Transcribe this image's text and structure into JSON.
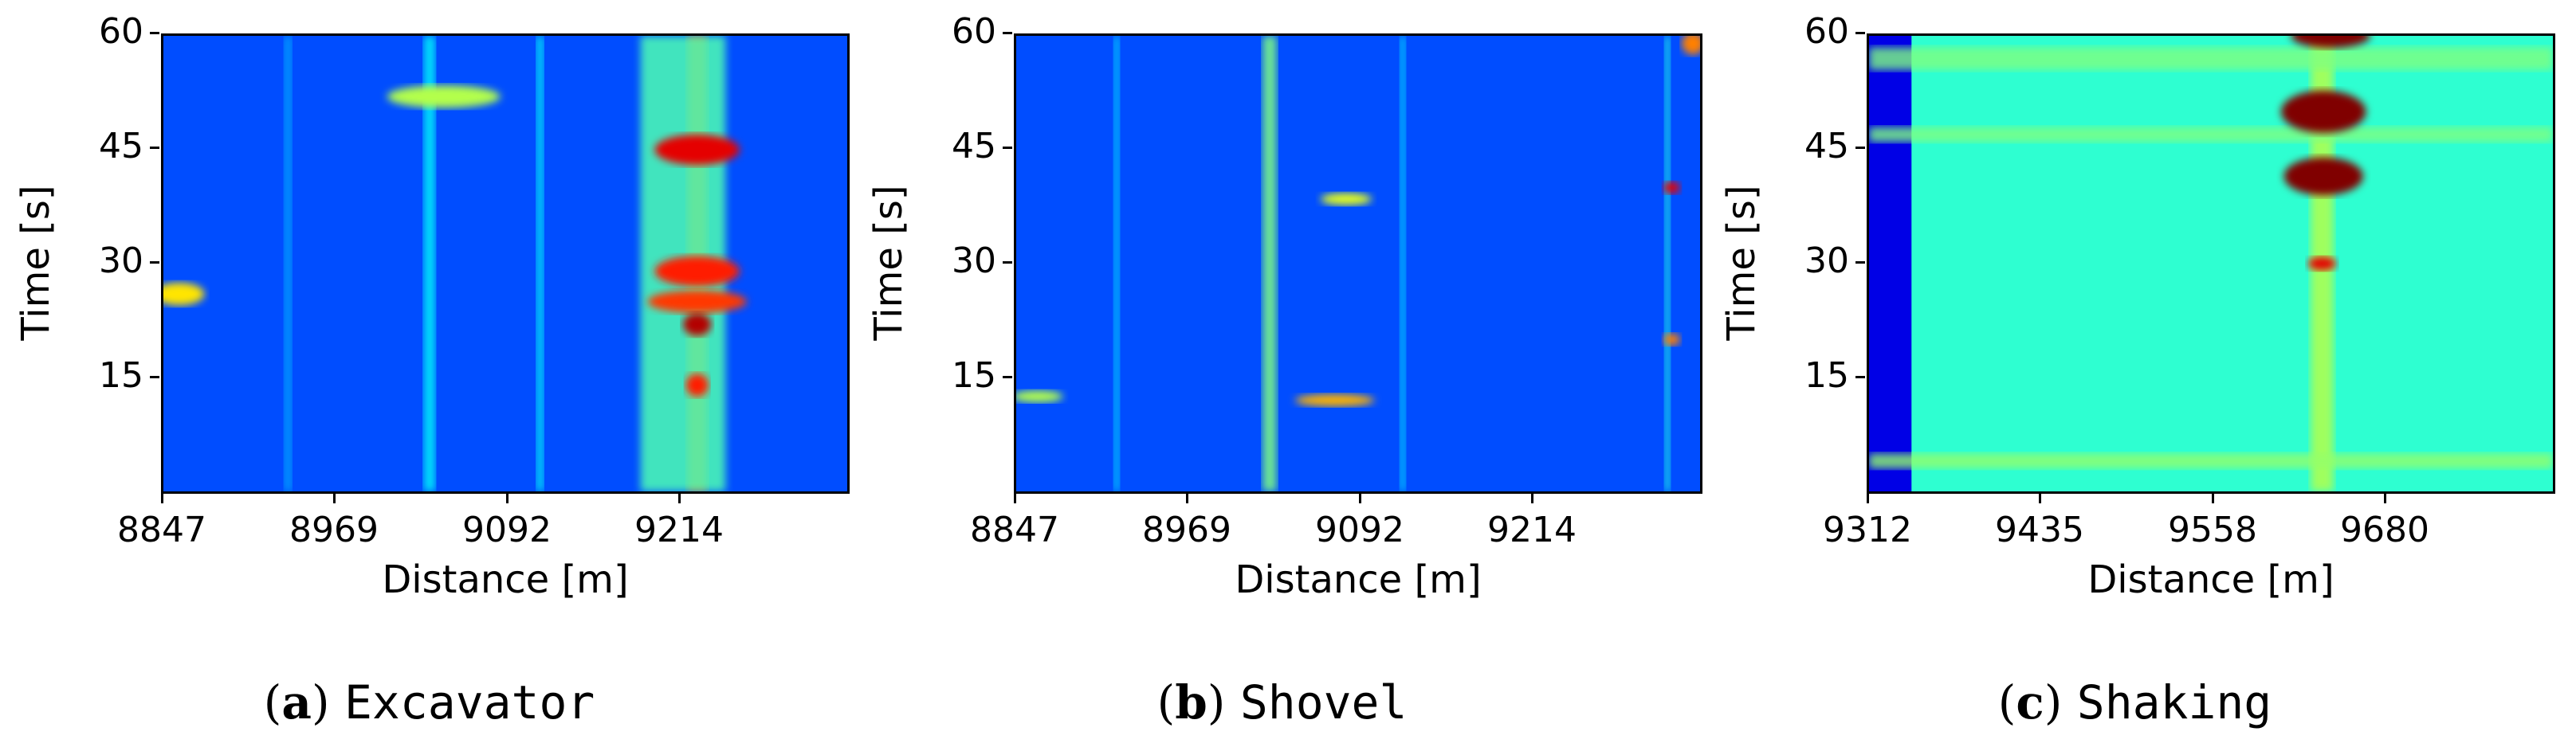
{
  "chart_data": [
    {
      "type": "heatmap",
      "caption_letter": "a",
      "caption_name": "Excavator",
      "xlabel": "Distance [m]",
      "ylabel": "Time [s]",
      "x_ticks": [
        "8847",
        "8969",
        "9092",
        "9214"
      ],
      "y_ticks": [
        "15",
        "30",
        "45",
        "60"
      ],
      "xlim": [
        8847,
        9330
      ],
      "ylim": [
        0,
        60
      ],
      "colormap": "jet",
      "background_level": 0.2,
      "features": [
        {
          "kind": "vline",
          "x": 9224,
          "width": 14,
          "level": 0.78
        },
        {
          "kind": "vline",
          "x": 9214,
          "width": 60,
          "level": 0.45
        },
        {
          "kind": "vline",
          "x": 9035,
          "width": 8,
          "level": 0.38
        },
        {
          "kind": "vline",
          "x": 9113,
          "width": 5,
          "level": 0.38
        },
        {
          "kind": "vline",
          "x": 8935,
          "width": 5,
          "level": 0.3
        },
        {
          "kind": "blob",
          "x": 9224,
          "y": 45,
          "rx": 30,
          "ry": 2,
          "level": 0.9
        },
        {
          "kind": "blob",
          "x": 9224,
          "y": 29,
          "rx": 30,
          "ry": 2,
          "level": 0.85
        },
        {
          "kind": "blob",
          "x": 9224,
          "y": 25,
          "rx": 35,
          "ry": 1.5,
          "level": 0.82
        },
        {
          "kind": "blob",
          "x": 9224,
          "y": 22,
          "rx": 10,
          "ry": 1.5,
          "level": 0.95
        },
        {
          "kind": "blob",
          "x": 9224,
          "y": 14,
          "rx": 8,
          "ry": 1.5,
          "level": 0.85
        },
        {
          "kind": "blob",
          "x": 8858,
          "y": 26,
          "rx": 18,
          "ry": 1.5,
          "level": 0.65
        },
        {
          "kind": "blob",
          "x": 9045,
          "y": 52,
          "rx": 40,
          "ry": 1.5,
          "level": 0.55
        }
      ]
    },
    {
      "type": "heatmap",
      "caption_letter": "b",
      "caption_name": "Shovel",
      "xlabel": "Distance [m]",
      "ylabel": "Time [s]",
      "x_ticks": [
        "8847",
        "8969",
        "9092",
        "9214"
      ],
      "y_ticks": [
        "15",
        "30",
        "45",
        "60"
      ],
      "xlim": [
        8847,
        9330
      ],
      "ylim": [
        0,
        60
      ],
      "colormap": "jet",
      "background_level": 0.2,
      "features": [
        {
          "kind": "vline",
          "x": 9026,
          "width": 10,
          "level": 0.5
        },
        {
          "kind": "vline",
          "x": 8918,
          "width": 4,
          "level": 0.35
        },
        {
          "kind": "vline",
          "x": 9120,
          "width": 4,
          "level": 0.35
        },
        {
          "kind": "vline",
          "x": 9307,
          "width": 4,
          "level": 0.4
        },
        {
          "kind": "blob",
          "x": 9072,
          "y": 12,
          "rx": 28,
          "ry": 0.8,
          "level": 0.7
        },
        {
          "kind": "blob",
          "x": 9080,
          "y": 38.5,
          "rx": 18,
          "ry": 0.8,
          "level": 0.6
        },
        {
          "kind": "blob",
          "x": 8862,
          "y": 12.5,
          "rx": 18,
          "ry": 0.8,
          "level": 0.55
        },
        {
          "kind": "blob",
          "x": 9310,
          "y": 40,
          "rx": 6,
          "ry": 0.8,
          "level": 0.9
        },
        {
          "kind": "blob",
          "x": 9310,
          "y": 20,
          "rx": 6,
          "ry": 0.8,
          "level": 0.75
        },
        {
          "kind": "blob",
          "x": 9325,
          "y": 59,
          "rx": 8,
          "ry": 1.5,
          "level": 0.75
        }
      ]
    },
    {
      "type": "heatmap",
      "caption_letter": "c",
      "caption_name": "Shaking",
      "xlabel": "Distance [m]",
      "ylabel": "Time [s]",
      "x_ticks": [
        "9312",
        "9435",
        "9558",
        "9680"
      ],
      "y_ticks": [
        "15",
        "30",
        "45",
        "60"
      ],
      "xlim": [
        9312,
        9795
      ],
      "ylim": [
        0,
        60
      ],
      "colormap": "jet",
      "background_level": 0.42,
      "features": [
        {
          "kind": "vband",
          "x0": 9312,
          "x1": 9342,
          "level": 0.1
        },
        {
          "kind": "vline",
          "x": 9632,
          "width": 16,
          "level": 0.55
        },
        {
          "kind": "hband",
          "y": 57,
          "h": 3,
          "level": 0.5
        },
        {
          "kind": "hband",
          "y": 47,
          "h": 2,
          "level": 0.5
        },
        {
          "kind": "hband",
          "y": 4,
          "h": 2,
          "level": 0.52
        },
        {
          "kind": "blob",
          "x": 9633,
          "y": 50,
          "rx": 30,
          "ry": 2.8,
          "level": 1.0
        },
        {
          "kind": "blob",
          "x": 9633,
          "y": 41.5,
          "rx": 28,
          "ry": 2.5,
          "level": 1.0
        },
        {
          "kind": "blob",
          "x": 9638,
          "y": 60,
          "rx": 28,
          "ry": 1.6,
          "level": 1.0
        },
        {
          "kind": "blob",
          "x": 9632,
          "y": 30,
          "rx": 10,
          "ry": 0.9,
          "level": 0.9
        }
      ]
    }
  ]
}
